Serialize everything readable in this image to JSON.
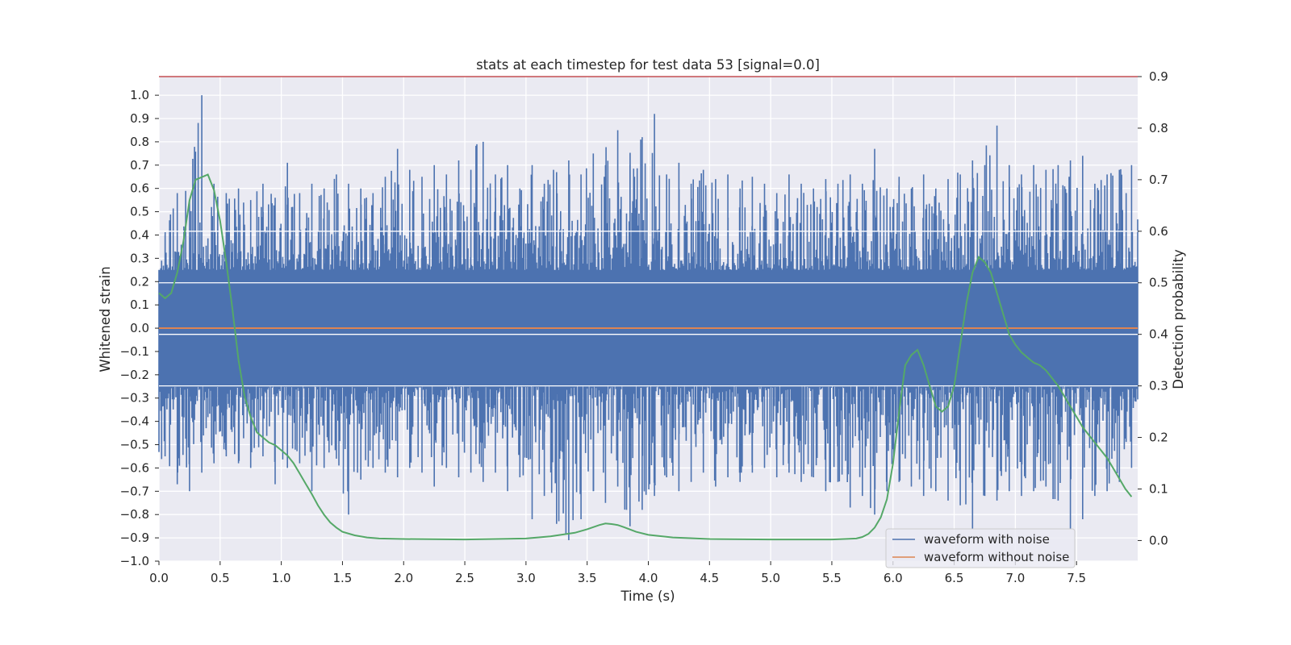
{
  "chart_data": {
    "type": "line",
    "title": "stats at each timestep for test data 53 [signal=0.0]",
    "xlabel": "Time (s)",
    "ylabel": "Whitened strain",
    "y2label": "Detection probability",
    "xlim": [
      0.0,
      8.0
    ],
    "ylim": [
      -1.0,
      1.08
    ],
    "y2lim": [
      -0.04,
      0.9
    ],
    "x_ticks": [
      0.0,
      0.5,
      1.0,
      1.5,
      2.0,
      2.5,
      3.0,
      3.5,
      4.0,
      4.5,
      5.0,
      5.5,
      6.0,
      6.5,
      7.0,
      7.5
    ],
    "x_tick_labels": [
      "0.0",
      "0.5",
      "1.0",
      "1.5",
      "2.0",
      "2.5",
      "3.0",
      "3.5",
      "4.0",
      "4.5",
      "5.0",
      "5.5",
      "6.0",
      "6.5",
      "7.0",
      "7.5"
    ],
    "y_ticks": [
      1.0,
      0.9,
      0.8,
      0.7,
      0.6,
      0.5,
      0.4,
      0.3,
      0.2,
      0.1,
      0.0,
      -0.1,
      -0.2,
      -0.3,
      -0.4,
      -0.5,
      -0.6,
      -0.7,
      -0.8,
      -0.9,
      -1.0
    ],
    "y_tick_labels": [
      "1.0",
      "0.9",
      "0.8",
      "0.7",
      "0.6",
      "0.5",
      "0.4",
      "0.3",
      "0.2",
      "0.1",
      "0.0",
      "−0.1",
      "−0.2",
      "−0.3",
      "−0.4",
      "−0.5",
      "−0.6",
      "−0.7",
      "−0.8",
      "−0.9",
      "−1.0"
    ],
    "y2_ticks": [
      0.9,
      0.8,
      0.7,
      0.6,
      0.5,
      0.4,
      0.3,
      0.2,
      0.1,
      0.0
    ],
    "y2_tick_labels": [
      "0.9",
      "0.8",
      "0.7",
      "0.6",
      "0.5",
      "0.4",
      "0.3",
      "0.2",
      "0.1",
      "0.0"
    ],
    "grid": true,
    "threshold_line": {
      "axis": "y2",
      "value": 0.9,
      "color": "#c44e52"
    },
    "noise_envelope": {
      "x": [
        0.0,
        0.1,
        0.2,
        0.3,
        0.4,
        0.5,
        0.6,
        0.7,
        0.8,
        0.9,
        1.0,
        1.1,
        1.2,
        1.3,
        1.4,
        1.5,
        1.6,
        1.7,
        1.8,
        1.9,
        2.0,
        2.1,
        2.2,
        2.3,
        2.4,
        2.5,
        2.6,
        2.7,
        2.8,
        2.9,
        3.0,
        3.1,
        3.2,
        3.3,
        3.4,
        3.5,
        3.6,
        3.7,
        3.8,
        3.9,
        4.0,
        4.1,
        4.2,
        4.3,
        4.4,
        4.5,
        4.6,
        4.7,
        4.8,
        4.9,
        5.0,
        5.1,
        5.2,
        5.3,
        5.4,
        5.5,
        5.6,
        5.7,
        5.8,
        5.9,
        6.0,
        6.1,
        6.2,
        6.3,
        6.4,
        6.5,
        6.6,
        6.7,
        6.8,
        6.9,
        7.0,
        7.1,
        7.2,
        7.3,
        7.4,
        7.5,
        7.6,
        7.7,
        7.8,
        7.9,
        8.0
      ],
      "upper": [
        0.4,
        0.58,
        0.55,
        1.0,
        0.62,
        0.58,
        0.6,
        0.55,
        0.62,
        0.56,
        0.71,
        0.58,
        0.62,
        0.6,
        0.66,
        0.62,
        0.6,
        0.58,
        0.65,
        0.77,
        0.68,
        0.65,
        0.7,
        0.66,
        0.72,
        0.68,
        0.8,
        0.66,
        0.7,
        0.6,
        0.7,
        0.62,
        0.67,
        0.72,
        0.66,
        0.75,
        0.7,
        0.85,
        0.7,
        0.82,
        0.92,
        0.66,
        0.71,
        0.62,
        0.68,
        0.64,
        0.66,
        0.6,
        0.65,
        0.62,
        0.58,
        0.66,
        0.62,
        0.6,
        0.64,
        0.62,
        0.66,
        0.62,
        0.77,
        0.6,
        0.65,
        0.6,
        0.66,
        0.6,
        0.64,
        0.66,
        0.72,
        0.7,
        0.87,
        0.7,
        0.66,
        0.7,
        0.68,
        0.7,
        0.72,
        0.74,
        0.62,
        0.66,
        0.68,
        0.7,
        0.49
      ],
      "lower": [
        -0.55,
        -0.67,
        -0.7,
        -0.62,
        -0.58,
        -0.55,
        -0.58,
        -0.6,
        -0.55,
        -0.67,
        -0.6,
        -0.58,
        -0.7,
        -0.6,
        -0.56,
        -0.8,
        -0.65,
        -0.6,
        -0.62,
        -0.64,
        -0.6,
        -0.62,
        -0.68,
        -0.6,
        -0.64,
        -0.62,
        -0.66,
        -0.62,
        -0.7,
        -0.64,
        -0.82,
        -0.72,
        -0.84,
        -0.91,
        -0.82,
        -0.7,
        -0.75,
        -0.68,
        -0.85,
        -0.78,
        -0.72,
        -0.64,
        -0.7,
        -0.66,
        -0.62,
        -0.68,
        -0.64,
        -0.66,
        -0.62,
        -0.6,
        -0.64,
        -0.62,
        -0.66,
        -0.64,
        -0.7,
        -0.66,
        -0.77,
        -0.72,
        -0.8,
        -0.7,
        -0.66,
        -0.68,
        -0.72,
        -0.7,
        -0.74,
        -0.76,
        -0.86,
        -0.72,
        -0.74,
        -0.7,
        -0.72,
        -0.7,
        -0.68,
        -0.74,
        -0.86,
        -0.82,
        -0.72,
        -0.7,
        -0.66,
        -0.6,
        -0.4
      ]
    },
    "series": [
      {
        "name": "waveform with noise",
        "axis": "y",
        "color": "#4c72b0"
      },
      {
        "name": "waveform without noise",
        "axis": "y",
        "color": "#dd8452",
        "x": [
          0.0,
          8.0
        ],
        "y": [
          0.0,
          0.0
        ]
      },
      {
        "axis": "y2",
        "color": "#55a868",
        "x": [
          0.0,
          0.05,
          0.1,
          0.15,
          0.2,
          0.25,
          0.3,
          0.35,
          0.4,
          0.45,
          0.5,
          0.55,
          0.6,
          0.65,
          0.7,
          0.75,
          0.8,
          0.85,
          0.9,
          0.95,
          1.0,
          1.05,
          1.1,
          1.15,
          1.2,
          1.25,
          1.3,
          1.35,
          1.4,
          1.45,
          1.5,
          1.6,
          1.7,
          1.8,
          2.0,
          2.5,
          3.0,
          3.2,
          3.4,
          3.5,
          3.6,
          3.65,
          3.7,
          3.75,
          3.8,
          3.9,
          4.0,
          4.2,
          4.5,
          5.0,
          5.5,
          5.7,
          5.75,
          5.8,
          5.85,
          5.9,
          5.95,
          6.0,
          6.05,
          6.1,
          6.15,
          6.2,
          6.25,
          6.3,
          6.35,
          6.4,
          6.45,
          6.5,
          6.55,
          6.6,
          6.65,
          6.7,
          6.75,
          6.8,
          6.85,
          6.9,
          6.95,
          7.0,
          7.05,
          7.1,
          7.15,
          7.2,
          7.25,
          7.3,
          7.35,
          7.4,
          7.45,
          7.5,
          7.55,
          7.6,
          7.65,
          7.7,
          7.75,
          7.8,
          7.85,
          7.9,
          7.95
        ],
        "y": [
          0.48,
          0.47,
          0.48,
          0.52,
          0.58,
          0.66,
          0.7,
          0.705,
          0.71,
          0.68,
          0.62,
          0.54,
          0.45,
          0.35,
          0.28,
          0.24,
          0.21,
          0.2,
          0.19,
          0.185,
          0.175,
          0.165,
          0.15,
          0.13,
          0.11,
          0.09,
          0.068,
          0.05,
          0.035,
          0.025,
          0.017,
          0.01,
          0.006,
          0.004,
          0.003,
          0.002,
          0.004,
          0.008,
          0.015,
          0.022,
          0.03,
          0.033,
          0.032,
          0.03,
          0.026,
          0.017,
          0.011,
          0.006,
          0.003,
          0.002,
          0.002,
          0.004,
          0.007,
          0.013,
          0.025,
          0.045,
          0.08,
          0.15,
          0.25,
          0.34,
          0.36,
          0.37,
          0.34,
          0.3,
          0.26,
          0.25,
          0.26,
          0.3,
          0.38,
          0.46,
          0.52,
          0.55,
          0.54,
          0.52,
          0.48,
          0.44,
          0.4,
          0.38,
          0.365,
          0.355,
          0.345,
          0.34,
          0.33,
          0.315,
          0.3,
          0.28,
          0.26,
          0.24,
          0.22,
          0.205,
          0.19,
          0.175,
          0.16,
          0.14,
          0.12,
          0.1,
          0.085
        ]
      }
    ],
    "hlines_y2": [
      0.6,
      0.5,
      0.4,
      0.3
    ],
    "legend": {
      "placement": "bottom-right",
      "entries": [
        {
          "label": "waveform with noise",
          "color": "#4c72b0"
        },
        {
          "label": "waveform without noise",
          "color": "#dd8452"
        }
      ]
    }
  }
}
